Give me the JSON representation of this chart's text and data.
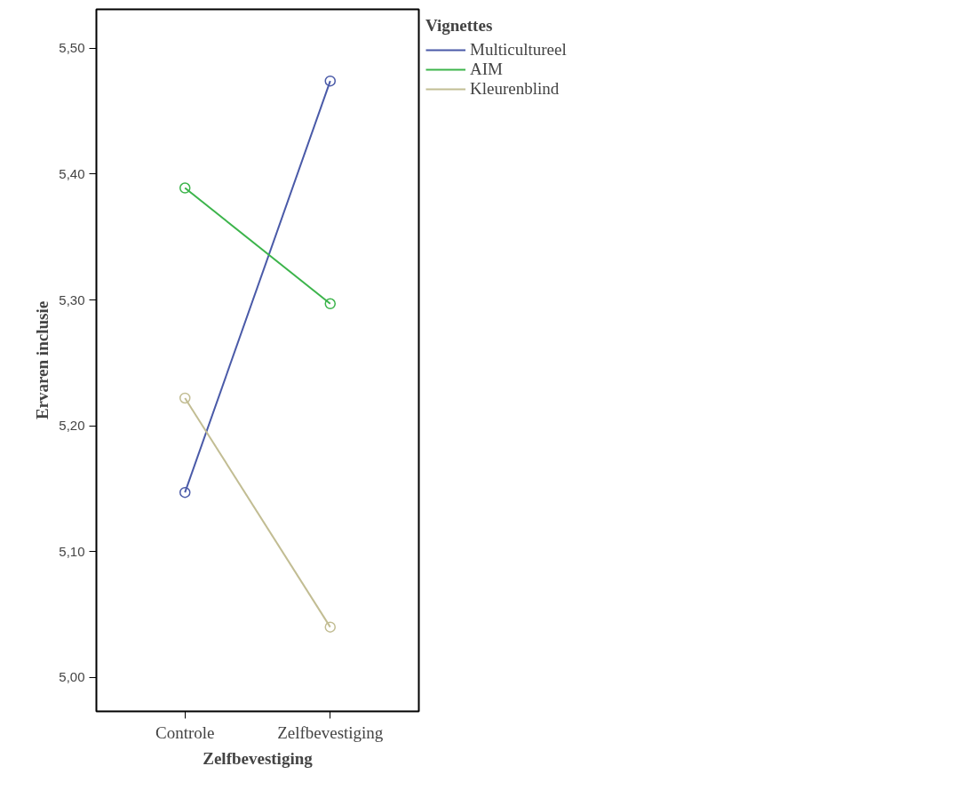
{
  "chart_data": {
    "type": "line",
    "xlabel": "Zelfbevestiging",
    "ylabel": "Ervaren inclusie",
    "legend_title": "Vignettes",
    "categories": [
      "Controle",
      "Zelfbevestiging"
    ],
    "series": [
      {
        "name": "Multicultureel",
        "color": "#4a5aa8",
        "values": [
          5.147,
          5.474
        ]
      },
      {
        "name": "AIM",
        "color": "#3cb44b",
        "values": [
          5.389,
          5.297
        ]
      },
      {
        "name": "Kleurenblind",
        "color": "#c2bd93",
        "values": [
          5.222,
          5.04
        ]
      }
    ],
    "ylim": [
      4.973,
      5.531
    ],
    "yticks": [
      {
        "value": 5.0,
        "label": "5,00"
      },
      {
        "value": 5.1,
        "label": "5,10"
      },
      {
        "value": 5.2,
        "label": "5,20"
      },
      {
        "value": 5.3,
        "label": "5,30"
      },
      {
        "value": 5.4,
        "label": "5,40"
      },
      {
        "value": 5.5,
        "label": "5,50"
      }
    ],
    "grid": false,
    "legend": "top right",
    "marker": "circle",
    "line_style": "solid"
  }
}
